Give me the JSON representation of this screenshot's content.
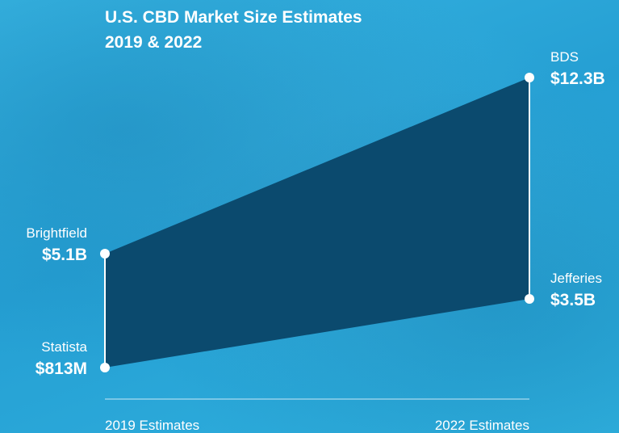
{
  "title_line1": "U.S. CBD Market Size Estimates",
  "title_line2": "2019 & 2022",
  "colors": {
    "area": "#0b4a6e",
    "line": "#ffffff",
    "background": "#2ea7d6"
  },
  "chart_data": {
    "type": "area",
    "title": "U.S. CBD Market Size Estimates 2019 & 2022",
    "categories": [
      "2019 Estimates",
      "2022 Estimates"
    ],
    "unit": "USD billions",
    "points": [
      {
        "category": "2019 Estimates",
        "source": "Brightfield",
        "label": "$5.1B",
        "value": 5.1
      },
      {
        "category": "2019 Estimates",
        "source": "Statista",
        "label": "$813M",
        "value": 0.813
      },
      {
        "category": "2022 Estimates",
        "source": "BDS",
        "label": "$12.3B",
        "value": 12.3
      },
      {
        "category": "2022 Estimates",
        "source": "Jefferies",
        "label": "$3.5B",
        "value": 3.5
      }
    ],
    "range_band": {
      "2019 Estimates": {
        "high": 5.1,
        "low": 0.813
      },
      "2022 Estimates": {
        "high": 12.3,
        "low": 3.5
      }
    }
  }
}
